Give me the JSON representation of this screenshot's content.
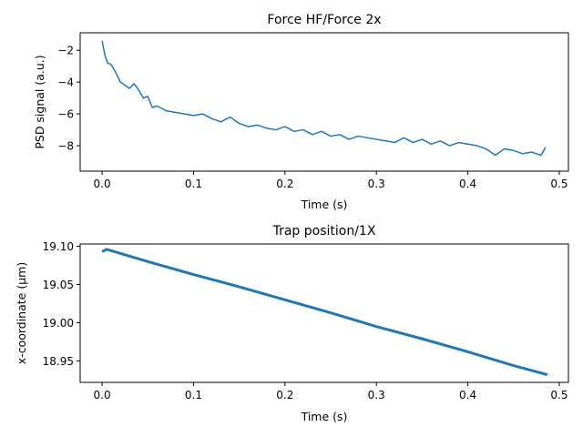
{
  "colors": {
    "series": "#1f77b4",
    "axes": "#000000",
    "background": "#ffffff"
  },
  "chart_data": [
    {
      "type": "line",
      "title": "Force HF/Force 2x",
      "xlabel": "Time (s)",
      "ylabel": "PSD signal (a.u.)",
      "xlim": [
        -0.024,
        0.51
      ],
      "ylim": [
        -9.6,
        -0.9
      ],
      "xticks": [
        0.0,
        0.1,
        0.2,
        0.3,
        0.4,
        0.5
      ],
      "xtick_labels": [
        "0.0",
        "0.1",
        "0.2",
        "0.3",
        "0.4",
        "0.5"
      ],
      "yticks": [
        -2,
        -4,
        -6,
        -8
      ],
      "ytick_labels": [
        "−2",
        "−4",
        "−6",
        "−8"
      ],
      "grid": false,
      "series": [
        {
          "x": [
            0.0,
            0.003,
            0.006,
            0.01,
            0.015,
            0.02,
            0.025,
            0.03,
            0.035,
            0.04,
            0.045,
            0.05,
            0.055,
            0.06,
            0.07,
            0.08,
            0.09,
            0.1,
            0.11,
            0.12,
            0.13,
            0.14,
            0.15,
            0.16,
            0.17,
            0.18,
            0.19,
            0.2,
            0.21,
            0.22,
            0.23,
            0.24,
            0.25,
            0.26,
            0.27,
            0.28,
            0.29,
            0.3,
            0.31,
            0.32,
            0.33,
            0.34,
            0.35,
            0.36,
            0.37,
            0.38,
            0.39,
            0.4,
            0.41,
            0.42,
            0.43,
            0.44,
            0.45,
            0.46,
            0.47,
            0.48,
            0.485
          ],
          "y": [
            -1.4,
            -2.3,
            -2.8,
            -2.9,
            -3.4,
            -4.0,
            -4.2,
            -4.4,
            -4.1,
            -4.5,
            -5.0,
            -4.9,
            -5.6,
            -5.5,
            -5.8,
            -5.9,
            -6.0,
            -6.1,
            -6.0,
            -6.3,
            -6.5,
            -6.2,
            -6.6,
            -6.8,
            -6.7,
            -6.9,
            -7.0,
            -6.8,
            -7.1,
            -7.0,
            -7.3,
            -7.1,
            -7.4,
            -7.3,
            -7.6,
            -7.4,
            -7.5,
            -7.6,
            -7.7,
            -7.8,
            -7.5,
            -7.8,
            -7.6,
            -7.9,
            -7.7,
            -8.0,
            -7.8,
            -7.9,
            -8.0,
            -8.2,
            -8.6,
            -8.2,
            -8.3,
            -8.5,
            -8.4,
            -8.6,
            -8.1
          ]
        }
      ]
    },
    {
      "type": "line",
      "title": "Trap position/1X",
      "xlabel": "Time (s)",
      "ylabel": "x-coordinate (μm)",
      "xlim": [
        -0.024,
        0.51
      ],
      "ylim": [
        18.922,
        19.103
      ],
      "xticks": [
        0.0,
        0.1,
        0.2,
        0.3,
        0.4,
        0.5
      ],
      "xtick_labels": [
        "0.0",
        "0.1",
        "0.2",
        "0.3",
        "0.4",
        "0.5"
      ],
      "yticks": [
        19.1,
        19.05,
        19.0,
        18.95
      ],
      "ytick_labels": [
        "19.10",
        "19.05",
        "19.00",
        "18.95"
      ],
      "grid": false,
      "series": [
        {
          "x": [
            0.0,
            0.005,
            0.05,
            0.1,
            0.15,
            0.2,
            0.25,
            0.3,
            0.35,
            0.4,
            0.45,
            0.487
          ],
          "y": [
            19.093,
            19.096,
            19.08,
            19.063,
            19.047,
            19.03,
            19.013,
            18.995,
            18.979,
            18.962,
            18.944,
            18.932
          ]
        }
      ]
    }
  ]
}
